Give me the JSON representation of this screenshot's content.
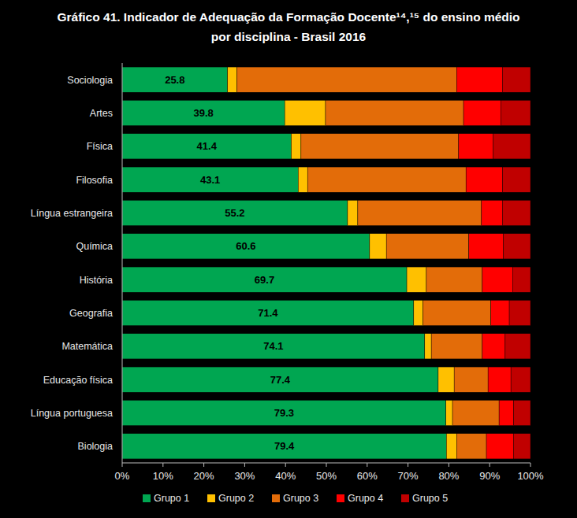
{
  "chart_data": {
    "type": "bar",
    "orientation": "horizontal",
    "stacked": true,
    "title": "Gráfico 41. Indicador de Adequação da Formação Docente¹⁴,¹⁵ do ensino médio",
    "subtitle": "por disciplina - Brasil 2016",
    "categories": [
      "Sociologia",
      "Artes",
      "Física",
      "Filosofia",
      "Língua estrangeira",
      "Química",
      "História",
      "Geografia",
      "Matemática",
      "Educação física",
      "Língua portuguesa",
      "Biologia"
    ],
    "series": [
      {
        "name": "Grupo 1",
        "color": "#00a651",
        "data_labels": true,
        "values": [
          25.8,
          39.8,
          41.4,
          43.1,
          55.2,
          60.6,
          69.7,
          71.4,
          74.1,
          77.4,
          79.3,
          79.4
        ]
      },
      {
        "name": "Grupo 2",
        "color": "#ffc000",
        "values": [
          2.3,
          10.0,
          2.4,
          2.3,
          2.5,
          4.1,
          4.8,
          2.3,
          1.6,
          3.9,
          1.6,
          2.5
        ]
      },
      {
        "name": "Grupo 3",
        "color": "#e36c09",
        "values": [
          53.8,
          33.8,
          38.6,
          38.8,
          30.3,
          20.2,
          13.7,
          16.6,
          12.5,
          8.3,
          11.4,
          7.3
        ]
      },
      {
        "name": "Grupo 4",
        "color": "#ff0000",
        "values": [
          11.2,
          9.1,
          8.5,
          9.0,
          5.1,
          8.5,
          7.4,
          4.5,
          5.6,
          5.6,
          3.6,
          6.6
        ]
      },
      {
        "name": "Grupo 5",
        "color": "#c00000",
        "values": [
          6.9,
          7.3,
          9.1,
          6.8,
          6.9,
          6.6,
          4.4,
          5.2,
          6.2,
          4.8,
          4.1,
          4.2
        ]
      }
    ],
    "xlim": [
      0,
      100
    ],
    "xticks": [
      {
        "value": 0,
        "label": "0%"
      },
      {
        "value": 10,
        "label": "10%"
      },
      {
        "value": 20,
        "label": "20%"
      },
      {
        "value": 30,
        "label": "30%"
      },
      {
        "value": 40,
        "label": "40%"
      },
      {
        "value": 50,
        "label": "50%"
      },
      {
        "value": 60,
        "label": "60%"
      },
      {
        "value": 70,
        "label": "70%"
      },
      {
        "value": 80,
        "label": "80%"
      },
      {
        "value": 90,
        "label": "90%"
      },
      {
        "value": 100,
        "label": "100%"
      }
    ],
    "grid": false,
    "legend": "bottom"
  }
}
